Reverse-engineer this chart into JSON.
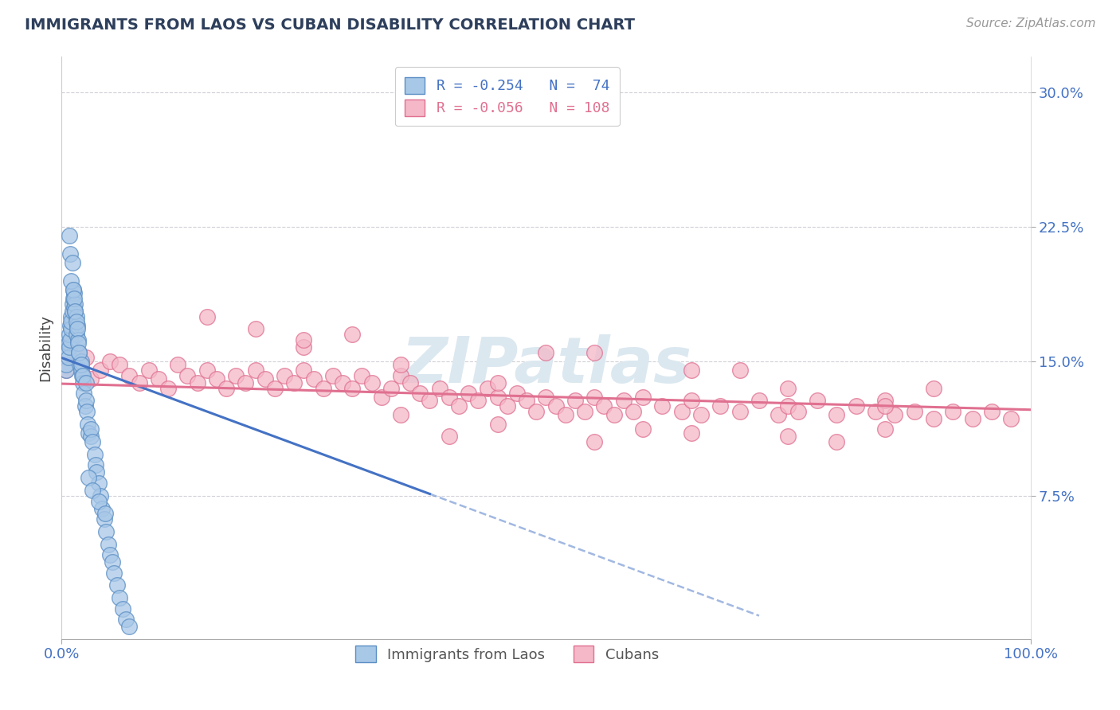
{
  "title": "IMMIGRANTS FROM LAOS VS CUBAN DISABILITY CORRELATION CHART",
  "source_text": "Source: ZipAtlas.com",
  "ylabel": "Disability",
  "series1_color": "#a8c8e8",
  "series1_edge": "#5b8ec4",
  "series2_color": "#f4b8c8",
  "series2_edge": "#e07090",
  "trendline1_color": "#4472c4",
  "trendline2_color": "#e07090",
  "background_color": "#ffffff",
  "grid_color": "#d0d0d8",
  "watermark_color": "#dce8f0",
  "title_color": "#2e3f5c",
  "x_lim": [
    0.0,
    1.0
  ],
  "y_lim": [
    -0.005,
    0.32
  ],
  "ytick_vals": [
    0.075,
    0.15,
    0.225,
    0.3
  ],
  "ytick_labels": [
    "7.5%",
    "15.0%",
    "22.5%",
    "30.0%"
  ],
  "xtick_vals": [
    0.0,
    1.0
  ],
  "xtick_labels": [
    "0.0%",
    "100.0%"
  ],
  "legend1_text": "R = -0.254   N =  74",
  "legend2_text": "R = -0.056   N = 108",
  "bottom_legend1": "Immigrants from Laos",
  "bottom_legend2": "Cubans",
  "scatter1_x": [
    0.005,
    0.005,
    0.006,
    0.007,
    0.007,
    0.008,
    0.008,
    0.009,
    0.009,
    0.01,
    0.01,
    0.01,
    0.011,
    0.011,
    0.012,
    0.012,
    0.013,
    0.013,
    0.014,
    0.014,
    0.015,
    0.015,
    0.016,
    0.017,
    0.018,
    0.019,
    0.02,
    0.02,
    0.021,
    0.022,
    0.023,
    0.024,
    0.025,
    0.026,
    0.027,
    0.028,
    0.03,
    0.03,
    0.032,
    0.034,
    0.035,
    0.036,
    0.038,
    0.04,
    0.042,
    0.044,
    0.046,
    0.048,
    0.05,
    0.052,
    0.054,
    0.057,
    0.06,
    0.063,
    0.066,
    0.07,
    0.008,
    0.009,
    0.01,
    0.011,
    0.012,
    0.013,
    0.014,
    0.015,
    0.016,
    0.017,
    0.018,
    0.02,
    0.022,
    0.025,
    0.028,
    0.032,
    0.038,
    0.045
  ],
  "scatter1_y": [
    0.145,
    0.148,
    0.155,
    0.16,
    0.152,
    0.158,
    0.165,
    0.162,
    0.17,
    0.175,
    0.168,
    0.172,
    0.178,
    0.182,
    0.185,
    0.19,
    0.18,
    0.188,
    0.178,
    0.182,
    0.175,
    0.165,
    0.17,
    0.162,
    0.155,
    0.148,
    0.145,
    0.15,
    0.142,
    0.138,
    0.132,
    0.125,
    0.128,
    0.122,
    0.115,
    0.11,
    0.108,
    0.112,
    0.105,
    0.098,
    0.092,
    0.088,
    0.082,
    0.075,
    0.068,
    0.062,
    0.055,
    0.048,
    0.042,
    0.038,
    0.032,
    0.025,
    0.018,
    0.012,
    0.006,
    0.002,
    0.22,
    0.21,
    0.195,
    0.205,
    0.19,
    0.185,
    0.178,
    0.172,
    0.168,
    0.16,
    0.155,
    0.148,
    0.142,
    0.138,
    0.085,
    0.078,
    0.072,
    0.065
  ],
  "scatter2_x": [
    0.005,
    0.01,
    0.015,
    0.02,
    0.025,
    0.03,
    0.04,
    0.05,
    0.06,
    0.07,
    0.08,
    0.09,
    0.1,
    0.11,
    0.12,
    0.13,
    0.14,
    0.15,
    0.16,
    0.17,
    0.18,
    0.19,
    0.2,
    0.21,
    0.22,
    0.23,
    0.24,
    0.25,
    0.26,
    0.27,
    0.28,
    0.29,
    0.3,
    0.31,
    0.32,
    0.33,
    0.34,
    0.35,
    0.36,
    0.37,
    0.38,
    0.39,
    0.4,
    0.41,
    0.42,
    0.43,
    0.44,
    0.45,
    0.46,
    0.47,
    0.48,
    0.49,
    0.5,
    0.51,
    0.52,
    0.53,
    0.54,
    0.55,
    0.56,
    0.57,
    0.58,
    0.59,
    0.6,
    0.62,
    0.64,
    0.65,
    0.66,
    0.68,
    0.7,
    0.72,
    0.74,
    0.75,
    0.76,
    0.78,
    0.8,
    0.82,
    0.84,
    0.85,
    0.86,
    0.88,
    0.9,
    0.92,
    0.94,
    0.96,
    0.98,
    0.25,
    0.35,
    0.45,
    0.55,
    0.65,
    0.75,
    0.85,
    0.3,
    0.5,
    0.7,
    0.9,
    0.4,
    0.6,
    0.8,
    0.2,
    0.15,
    0.55,
    0.45,
    0.35,
    0.65,
    0.75,
    0.25,
    0.85
  ],
  "scatter2_y": [
    0.145,
    0.16,
    0.155,
    0.148,
    0.152,
    0.14,
    0.145,
    0.15,
    0.148,
    0.142,
    0.138,
    0.145,
    0.14,
    0.135,
    0.148,
    0.142,
    0.138,
    0.145,
    0.14,
    0.135,
    0.142,
    0.138,
    0.145,
    0.14,
    0.135,
    0.142,
    0.138,
    0.145,
    0.14,
    0.135,
    0.142,
    0.138,
    0.135,
    0.142,
    0.138,
    0.13,
    0.135,
    0.142,
    0.138,
    0.132,
    0.128,
    0.135,
    0.13,
    0.125,
    0.132,
    0.128,
    0.135,
    0.13,
    0.125,
    0.132,
    0.128,
    0.122,
    0.13,
    0.125,
    0.12,
    0.128,
    0.122,
    0.13,
    0.125,
    0.12,
    0.128,
    0.122,
    0.13,
    0.125,
    0.122,
    0.128,
    0.12,
    0.125,
    0.122,
    0.128,
    0.12,
    0.125,
    0.122,
    0.128,
    0.12,
    0.125,
    0.122,
    0.128,
    0.12,
    0.122,
    0.118,
    0.122,
    0.118,
    0.122,
    0.118,
    0.158,
    0.148,
    0.138,
    0.155,
    0.145,
    0.135,
    0.125,
    0.165,
    0.155,
    0.145,
    0.135,
    0.108,
    0.112,
    0.105,
    0.168,
    0.175,
    0.105,
    0.115,
    0.12,
    0.11,
    0.108,
    0.162,
    0.112
  ]
}
